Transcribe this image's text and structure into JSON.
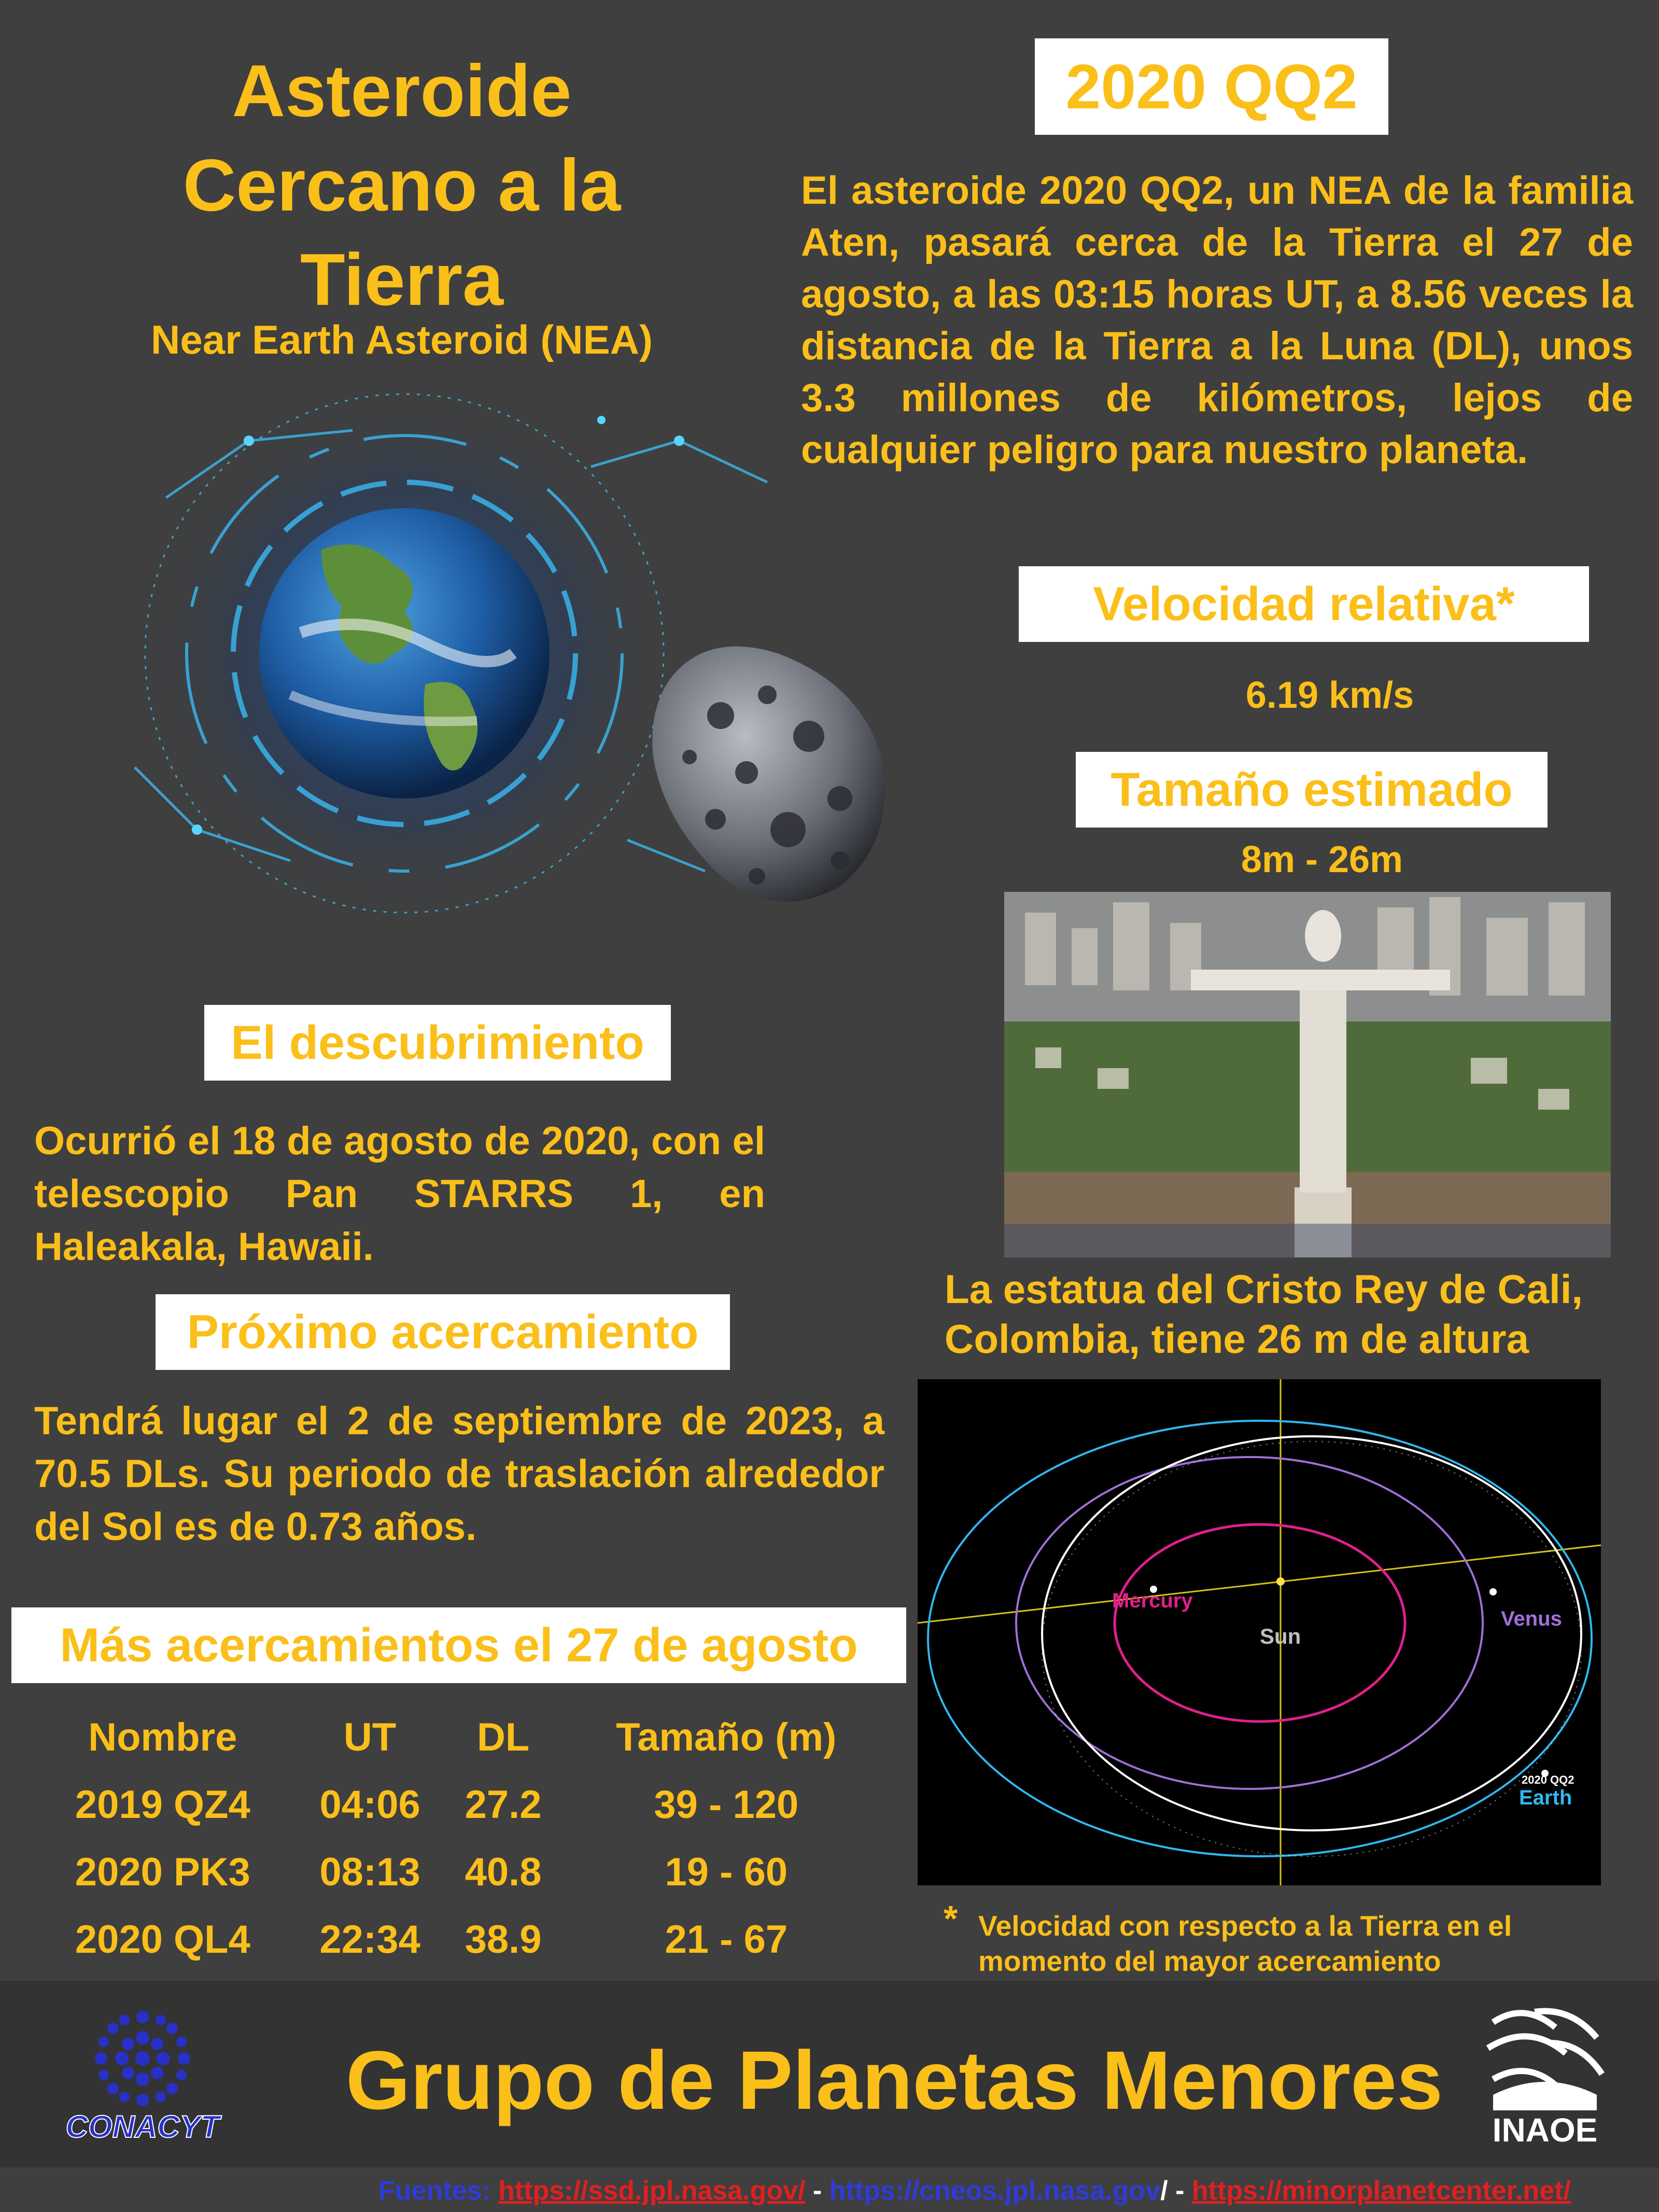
{
  "title_lines": [
    "Asteroide",
    "Cercano a la",
    "Tierra"
  ],
  "subtitle": "Near Earth Asteroid (NEA)",
  "asteroid_name": "2020 QQ2",
  "intro": "El asteroide 2020 QQ2, un NEA de la familia Aten, pasará cerca de la Tierra el 27 de agosto, a las 03:15 horas UT, a 8.56 veces la distancia de la Tierra a la Luna (DL), unos 3.3 millones de kilómetros, lejos de cualquier peligro para nuestro planeta.",
  "velocity": {
    "label": "Velocidad relativa*",
    "value": "6.19 km/s"
  },
  "size": {
    "label": "Tamaño estimado",
    "value": "8m - 26m"
  },
  "statue_caption_lines": [
    "La estatua del Cristo Rey de Cali,",
    "Colombia, tiene 26 m de altura"
  ],
  "discovery": {
    "label": "El descubrimiento",
    "text": "Ocurrió el 18 de agosto de 2020, con el telescopio Pan STARRS 1, en Haleakala, Hawaii."
  },
  "next_approach": {
    "label": "Próximo acercamiento",
    "text": "Tendrá lugar el 2 de septiembre de 2023, a 70.5 DLs. Su periodo de traslación alrededor del Sol es de 0.73 años."
  },
  "more_approaches": {
    "label": "Más acercamientos el 27 de agosto",
    "headers": [
      "Nombre",
      "UT",
      "DL",
      "Tamaño (m)"
    ],
    "rows": [
      [
        "2019 QZ4",
        "04:06",
        "27.2",
        "39 - 120"
      ],
      [
        "2020 PK3",
        "08:13",
        "40.8",
        "19 - 60"
      ],
      [
        "2020 QL4",
        "22:34",
        "38.9",
        "21 - 67"
      ]
    ]
  },
  "orbit_labels": {
    "mercury": "Mercury",
    "venus": "Venus",
    "sun": "Sun",
    "earth": "Earth",
    "asteroid": "2020 QQ2"
  },
  "footnote_star": "*",
  "footnote": "Velocidad con respecto a la Tierra en el momento del mayor acercamiento",
  "footer": {
    "title": "Grupo de Planetas Menores",
    "conacyt": "CONACYT",
    "inaoe": "INAOE"
  },
  "sources": {
    "label": "Fuentes:",
    "link1": "https://ssd.jpl.nasa.gov/",
    "sep1": " - ",
    "link2": "https://cneos.jpl.nasa.gov",
    "sep2": "/ - ",
    "link3": "https://minorplanetcenter.net/"
  },
  "colors": {
    "background": "#3f3f3f",
    "accent": "#fbbf1a",
    "box": "#ffffff",
    "footer": "#333333"
  }
}
